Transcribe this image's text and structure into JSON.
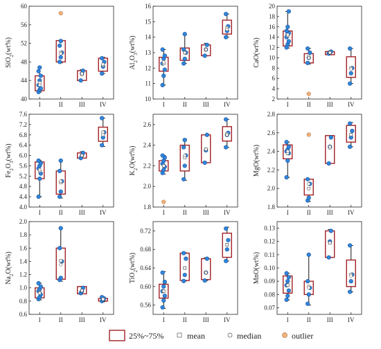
{
  "colors": {
    "box_edge": "#a11f24",
    "point_fill": "#2e86de",
    "point_edge": "#1f4e8c",
    "whisker": "#111111",
    "outlier_fill": "#f2b27a",
    "outlier_edge": "#b07a4a",
    "mean_fill": "#ffffff",
    "median_fill": "#ffffff"
  },
  "legend": {
    "box_label": "25%~75%",
    "mean_label": "mean",
    "median_label": "median",
    "outlier_label": "outlier"
  },
  "chart_data": [
    {
      "type": "box",
      "ylabel": "SiO2(wt%)",
      "ylabel_parts": {
        "main": "SiO",
        "sub": "2",
        "tail": "(wt%)"
      },
      "ylim": [
        40,
        60
      ],
      "yticks": [
        "40",
        "44",
        "48",
        "52",
        "56",
        "60"
      ],
      "categories": [
        "I",
        "II",
        "III",
        "IV"
      ],
      "groups": [
        {
          "points": [
            41.5,
            42.0,
            42.3,
            43.0,
            44.0,
            45.0,
            46.0,
            46.8
          ],
          "box": [
            41.8,
            45.0
          ],
          "whisker": [
            41.5,
            46.8
          ],
          "mean": 43.5,
          "median": 43.0
        },
        {
          "points": [
            48.0,
            49.0,
            50.0,
            51.5,
            52.5
          ],
          "box": [
            48.0,
            52.6
          ],
          "whisker": [
            47.8,
            52.6
          ],
          "mean": 50.0,
          "median": 49.8,
          "outliers": [
            58.5
          ]
        },
        {
          "points": [
            44.0,
            45.5,
            46.1
          ],
          "box": [
            44.0,
            46.1
          ],
          "whisker": [
            44.0,
            46.3
          ],
          "mean": 45.3,
          "median": 45.5
        },
        {
          "points": [
            45.5,
            47.0,
            48.0,
            48.8
          ],
          "box": [
            46.0,
            48.8
          ],
          "whisker": [
            45.5,
            49.0
          ],
          "mean": 47.3,
          "median": 47.5
        }
      ]
    },
    {
      "type": "box",
      "ylabel": "Al2O3(wt%)",
      "ylabel_parts": {
        "main": "Al",
        "sub": "2",
        "tail": "O",
        "sub2": "3",
        "tail2": "(wt%)"
      },
      "ylim": [
        10,
        16
      ],
      "yticks": [
        "10",
        "11",
        "12",
        "13",
        "14",
        "15",
        "16"
      ],
      "categories": [
        "I",
        "II",
        "III",
        "IV"
      ],
      "groups": [
        {
          "points": [
            10.9,
            11.5,
            11.9,
            12.3,
            12.6,
            12.8,
            13.2
          ],
          "box": [
            11.8,
            12.7
          ],
          "whisker": [
            10.9,
            13.2
          ],
          "mean": 12.3,
          "median": 12.4
        },
        {
          "points": [
            12.3,
            12.6,
            13.0,
            13.2,
            14.2
          ],
          "box": [
            12.5,
            13.3
          ],
          "whisker": [
            12.3,
            14.2
          ],
          "mean": 13.0,
          "median": 13.0
        },
        {
          "points": [
            12.8,
            13.2,
            13.5
          ],
          "box": [
            12.8,
            13.5
          ],
          "whisker": [
            12.8,
            13.6
          ],
          "mean": 13.2,
          "median": 13.2
        },
        {
          "points": [
            14.0,
            14.4,
            14.7,
            15.5
          ],
          "box": [
            14.2,
            15.1
          ],
          "whisker": [
            14.0,
            15.5
          ],
          "mean": 14.6,
          "median": 14.5
        }
      ]
    },
    {
      "type": "box",
      "ylabel": "CaO(wt%)",
      "ylabel_parts": {
        "main": "CaO(wt%)"
      },
      "ylim": [
        2,
        20
      ],
      "yticks": [
        "2",
        "4",
        "6",
        "8",
        "10",
        "12",
        "14",
        "16",
        "18",
        "20"
      ],
      "categories": [
        "I",
        "II",
        "III",
        "IV"
      ],
      "groups": [
        {
          "points": [
            12.0,
            12.6,
            13.2,
            14.0,
            14.5,
            14.8,
            15.2,
            16.0,
            19.0
          ],
          "box": [
            12.3,
            15.2
          ],
          "whisker": [
            11.9,
            19.0
          ],
          "mean": 14.3,
          "median": 14.5
        },
        {
          "points": [
            9.0,
            10.0,
            11.0,
            11.8
          ],
          "box": [
            9.0,
            10.8
          ],
          "whisker": [
            8.8,
            11.8
          ],
          "mean": 10.2,
          "median": 10.0,
          "outliers": [
            3.0
          ]
        },
        {
          "points": [
            10.8,
            11.0,
            11.2
          ],
          "box": [
            10.6,
            11.2
          ],
          "whisker": [
            10.6,
            11.3
          ],
          "mean": 11.0,
          "median": 11.0
        },
        {
          "points": [
            5.0,
            7.0,
            8.0,
            11.8
          ],
          "box": [
            6.2,
            10.2
          ],
          "whisker": [
            5.0,
            11.8
          ],
          "mean": 8.0,
          "median": 7.8
        }
      ]
    },
    {
      "type": "box",
      "ylabel": "Fe2O3(wt%)",
      "ylabel_parts": {
        "main": "Fe",
        "sub": "2",
        "tail": "O",
        "sub2": "3",
        "tail2": "(wt%)"
      },
      "ylim": [
        4.0,
        7.6
      ],
      "yticks": [
        "4.0",
        "4.4",
        "4.8",
        "5.2",
        "5.6",
        "6.0",
        "6.4",
        "6.8",
        "7.2",
        "7.6"
      ],
      "categories": [
        "I",
        "II",
        "III",
        "IV"
      ],
      "groups": [
        {
          "points": [
            4.4,
            5.1,
            5.3,
            5.5,
            5.6,
            5.7,
            5.8
          ],
          "box": [
            5.1,
            5.75
          ],
          "whisker": [
            4.4,
            5.8
          ],
          "mean": 5.4,
          "median": 5.45
        },
        {
          "points": [
            4.4,
            4.6,
            5.0,
            5.4,
            5.8
          ],
          "box": [
            4.5,
            5.4
          ],
          "whisker": [
            4.35,
            5.8
          ],
          "mean": 4.95,
          "median": 5.0
        },
        {
          "points": [
            5.9,
            6.0,
            6.1
          ],
          "box": [
            5.9,
            6.1
          ],
          "whisker": [
            5.9,
            6.15
          ],
          "mean": 6.0,
          "median": 6.0
        },
        {
          "points": [
            6.4,
            6.7,
            6.9,
            7.45
          ],
          "box": [
            6.55,
            7.1
          ],
          "whisker": [
            6.35,
            7.45
          ],
          "mean": 6.9,
          "median": 6.8
        }
      ]
    },
    {
      "type": "box",
      "ylabel": "K2O(wt%)",
      "ylabel_parts": {
        "main": "K",
        "sub": "2",
        "tail": "O(wt%)"
      },
      "ylim": [
        1.8,
        2.7
      ],
      "yticks": [
        "1.8",
        "2.0",
        "2.2",
        "2.4",
        "2.6"
      ],
      "categories": [
        "I",
        "II",
        "III",
        "IV"
      ],
      "groups": [
        {
          "points": [
            2.13,
            2.16,
            2.19,
            2.22,
            2.25,
            2.28,
            2.3
          ],
          "box": [
            2.15,
            2.25
          ],
          "whisker": [
            2.12,
            2.3
          ],
          "mean": 2.2,
          "median": 2.2,
          "outliers": [
            1.85
          ]
        },
        {
          "points": [
            2.07,
            2.2,
            2.3,
            2.38,
            2.45
          ],
          "box": [
            2.15,
            2.4
          ],
          "whisker": [
            2.06,
            2.46
          ],
          "mean": 2.28,
          "median": 2.3
        },
        {
          "points": [
            2.23,
            2.35,
            2.5
          ],
          "box": [
            2.23,
            2.5
          ],
          "whisker": [
            2.23,
            2.5
          ],
          "mean": 2.36,
          "median": 2.36
        },
        {
          "points": [
            2.38,
            2.5,
            2.52,
            2.65
          ],
          "box": [
            2.44,
            2.58
          ],
          "whisker": [
            2.38,
            2.65
          ],
          "mean": 2.51,
          "median": 2.5
        }
      ]
    },
    {
      "type": "box",
      "ylabel": "MgO(wt%)",
      "ylabel_parts": {
        "main": "MgO(wt%)"
      },
      "ylim": [
        1.8,
        2.8
      ],
      "yticks": [
        "1.8",
        "2.0",
        "2.2",
        "2.4",
        "2.6",
        "2.8"
      ],
      "categories": [
        "I",
        "II",
        "III",
        "IV"
      ],
      "groups": [
        {
          "points": [
            2.12,
            2.3,
            2.38,
            2.4,
            2.42,
            2.45,
            2.5
          ],
          "box": [
            2.32,
            2.47
          ],
          "whisker": [
            2.12,
            2.5
          ],
          "mean": 2.38,
          "median": 2.4
        },
        {
          "points": [
            1.87,
            1.9,
            2.05,
            2.1
          ],
          "box": [
            1.93,
            2.1
          ],
          "whisker": [
            1.86,
            2.1
          ],
          "mean": 2.0,
          "median": 2.05,
          "outliers": [
            2.58
          ]
        },
        {
          "points": [
            2.27,
            2.45,
            2.55
          ],
          "box": [
            2.27,
            2.57
          ],
          "whisker": [
            2.27,
            2.57
          ],
          "mean": 2.44,
          "median": 2.45
        },
        {
          "points": [
            2.45,
            2.55,
            2.62,
            2.7
          ],
          "box": [
            2.5,
            2.68
          ],
          "whisker": [
            2.45,
            2.71
          ],
          "mean": 2.58,
          "median": 2.58
        }
      ]
    },
    {
      "type": "box",
      "ylabel": "Na2O(wt%)",
      "ylabel_parts": {
        "main": "Na",
        "sub": "2",
        "tail": "O(wt%)"
      },
      "ylim": [
        0.6,
        2.0
      ],
      "yticks": [
        "0.6",
        "0.8",
        "1.0",
        "1.2",
        "1.4",
        "1.6",
        "1.8",
        "2.0"
      ],
      "categories": [
        "I",
        "II",
        "III",
        "IV"
      ],
      "groups": [
        {
          "points": [
            0.83,
            0.86,
            0.9,
            0.95,
            0.98,
            1.02,
            1.07
          ],
          "box": [
            0.85,
            1.0
          ],
          "whisker": [
            0.82,
            1.07
          ],
          "mean": 0.93,
          "median": 0.92
        },
        {
          "points": [
            1.12,
            1.15,
            1.4,
            1.6,
            1.9
          ],
          "box": [
            1.13,
            1.6
          ],
          "whisker": [
            1.1,
            1.9
          ],
          "mean": 1.41,
          "median": 1.35
        },
        {
          "points": [
            0.92,
            0.95,
            1.0
          ],
          "box": [
            0.91,
            1.02
          ],
          "whisker": [
            0.91,
            1.02
          ],
          "mean": 0.96,
          "median": 0.96
        },
        {
          "points": [
            0.8,
            0.82,
            0.84,
            0.86
          ],
          "box": [
            0.8,
            0.84
          ],
          "whisker": [
            0.79,
            0.86
          ],
          "mean": 0.83,
          "median": 0.83
        }
      ]
    },
    {
      "type": "box",
      "ylabel": "TiO2(wt%)",
      "ylabel_parts": {
        "main": "TiO",
        "sub": "2",
        "tail": "(wt%)"
      },
      "ylim": [
        0.54,
        0.74
      ],
      "yticks": [
        "0.56",
        "0.60",
        "0.64",
        "0.68",
        "0.72"
      ],
      "categories": [
        "I",
        "II",
        "III",
        "IV"
      ],
      "groups": [
        {
          "points": [
            0.555,
            0.57,
            0.58,
            0.59,
            0.6,
            0.61,
            0.63
          ],
          "box": [
            0.575,
            0.605
          ],
          "whisker": [
            0.553,
            0.632
          ],
          "mean": 0.59,
          "median": 0.59
        },
        {
          "points": [
            0.612,
            0.625,
            0.66,
            0.672
          ],
          "box": [
            0.613,
            0.672
          ],
          "whisker": [
            0.612,
            0.673
          ],
          "mean": 0.64,
          "median": 0.64
        },
        {
          "points": [
            0.613,
            0.63,
            0.66
          ],
          "box": [
            0.615,
            0.66
          ],
          "whisker": [
            0.613,
            0.662
          ],
          "mean": 0.63,
          "median": 0.63
        },
        {
          "points": [
            0.655,
            0.68,
            0.7,
            0.725
          ],
          "box": [
            0.663,
            0.715
          ],
          "whisker": [
            0.655,
            0.728
          ],
          "mean": 0.69,
          "median": 0.69
        }
      ]
    },
    {
      "type": "box",
      "ylabel": "MnO(wt%)",
      "ylabel_parts": {
        "main": "MnO(wt%)"
      },
      "ylim": [
        0.065,
        0.135
      ],
      "yticks": [
        "0.07",
        "0.08",
        "0.09",
        "0.10",
        "0.11",
        "0.12",
        "0.13"
      ],
      "categories": [
        "I",
        "II",
        "III",
        "IV"
      ],
      "groups": [
        {
          "points": [
            0.076,
            0.079,
            0.083,
            0.087,
            0.09,
            0.093,
            0.096
          ],
          "box": [
            0.081,
            0.094
          ],
          "whisker": [
            0.076,
            0.096
          ],
          "mean": 0.087,
          "median": 0.087
        },
        {
          "points": [
            0.073,
            0.08,
            0.085,
            0.09,
            0.11
          ],
          "box": [
            0.08,
            0.09
          ],
          "whisker": [
            0.072,
            0.11
          ],
          "mean": 0.086,
          "median": 0.085
        },
        {
          "points": [
            0.108,
            0.12,
            0.128
          ],
          "box": [
            0.108,
            0.128
          ],
          "whisker": [
            0.108,
            0.129
          ],
          "mean": 0.119,
          "median": 0.119
        },
        {
          "points": [
            0.082,
            0.09,
            0.095,
            0.117
          ],
          "box": [
            0.086,
            0.106
          ],
          "whisker": [
            0.082,
            0.117
          ],
          "mean": 0.095,
          "median": 0.094
        }
      ]
    }
  ]
}
